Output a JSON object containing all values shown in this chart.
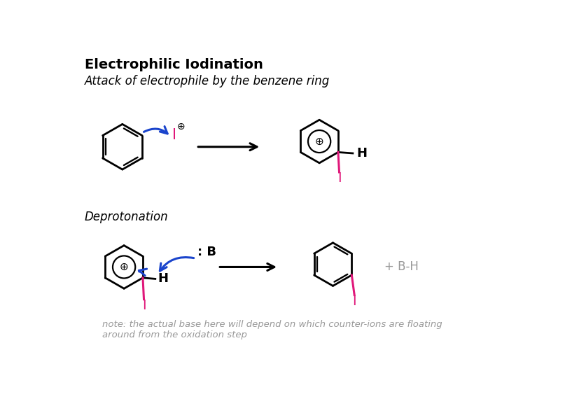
{
  "title": "Electrophilic Iodination",
  "subtitle": "Attack of electrophile by the benzene ring",
  "subtitle2": "Deprotonation",
  "note": "note: the actual base here will depend on which counter-ions are floating\naround from the oxidation step",
  "background_color": "#ffffff",
  "text_color": "#000000",
  "arrow_color": "#1a44cc",
  "iodine_color": "#e0187a",
  "gray_color": "#999999",
  "title_fontsize": 14,
  "subtitle_fontsize": 12,
  "note_fontsize": 9.5
}
